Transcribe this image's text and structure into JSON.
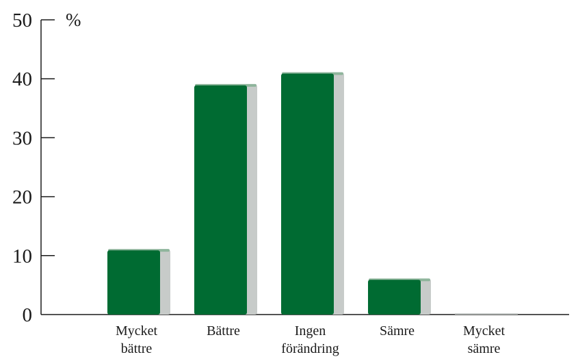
{
  "chart_data": {
    "type": "bar",
    "unit_label": "%",
    "categories": [
      [
        "Mycket",
        "bättre"
      ],
      [
        "Bättre"
      ],
      [
        "Ingen",
        "förändring"
      ],
      [
        "Sämre"
      ],
      [
        "Mycket",
        "sämre"
      ]
    ],
    "values": [
      11,
      39,
      41,
      6,
      0
    ],
    "ylim": [
      0,
      50
    ],
    "yticks": [
      "0",
      "10",
      "20",
      "30",
      "40",
      "50"
    ],
    "grid": false,
    "colors": {
      "bar_front": "#006b32",
      "bar_side": "#c7cbc9",
      "bar_top": "#8fb59c",
      "axis": "#1a1a1a"
    }
  }
}
